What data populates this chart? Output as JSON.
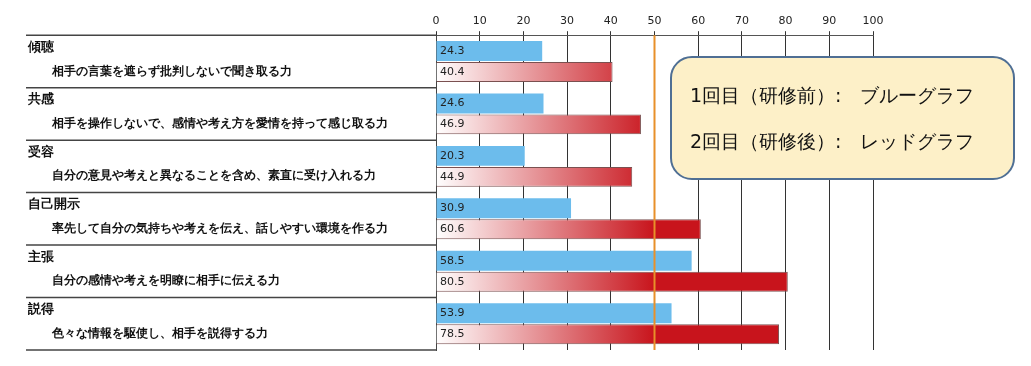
{
  "chart_data": {
    "type": "bar",
    "orientation": "horizontal",
    "categories": [
      "傾聴",
      "共感",
      "受容",
      "自己開示",
      "主張",
      "説得"
    ],
    "series": [
      {
        "color": "#6cbcec",
        "values": [
          24.3,
          24.6,
          20.3,
          30.9,
          58.5,
          53.9
        ]
      },
      {
        "color": "#c8141c",
        "values": [
          40.4,
          46.9,
          44.9,
          60.6,
          80.5,
          78.5
        ]
      }
    ],
    "x2lim": [
      0,
      100
    ],
    "x2ticks": [
      0,
      10,
      20,
      30,
      40,
      50,
      60,
      70,
      80,
      90,
      100
    ],
    "grid": "x",
    "data_labels": true,
    "legend": false,
    "ref_lines": [
      {
        "axis": "x",
        "value": 50,
        "color": "#e8902a"
      }
    ],
    "annotations": [
      "相手の言葉を遮らず批判しないで聞き取る力",
      "相手を操作しないで、感情や考え方を愛情を持って感じ取る力",
      "自分の意見や考えと異なることを含め、素直に受け入れる力",
      "率先して自分の気持ちや考えを伝え、話しやすい環境を作る力",
      "自分の感情や考えを明瞭に相手に伝える力",
      "色々な情報を駆使し、相手を説得する力",
      "1回目（研修前）:　ブルーグラフ",
      "2回目（研修後）:　レッドグラフ"
    ]
  }
}
